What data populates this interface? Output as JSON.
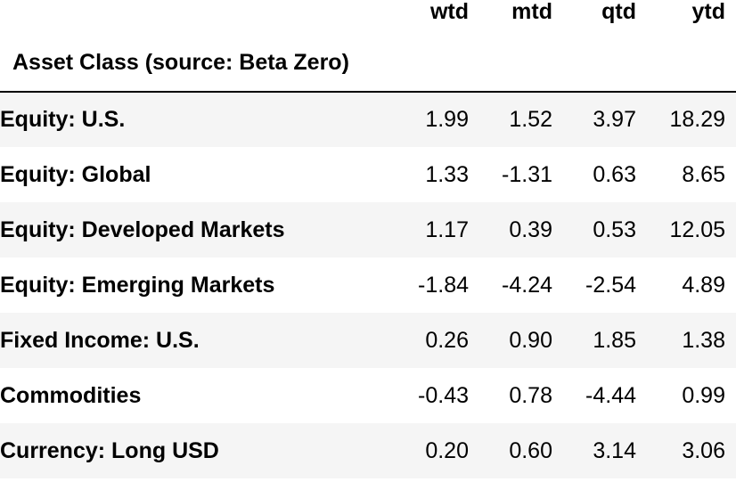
{
  "table": {
    "columns": [
      "wtd",
      "mtd",
      "qtd",
      "ytd"
    ],
    "index_label": "Asset Class (source: Beta Zero)",
    "rows": [
      {
        "label": "Equity: U.S.",
        "values": [
          "1.99",
          "1.52",
          "3.97",
          "18.29"
        ]
      },
      {
        "label": "Equity: Global",
        "values": [
          "1.33",
          "-1.31",
          "0.63",
          "8.65"
        ]
      },
      {
        "label": "Equity: Developed Markets",
        "values": [
          "1.17",
          "0.39",
          "0.53",
          "12.05"
        ]
      },
      {
        "label": "Equity: Emerging Markets",
        "values": [
          "-1.84",
          "-4.24",
          "-2.54",
          "4.89"
        ]
      },
      {
        "label": "Fixed Income: U.S.",
        "values": [
          "0.26",
          "0.90",
          "1.85",
          "1.38"
        ]
      },
      {
        "label": "Commodities",
        "values": [
          "-0.43",
          "0.78",
          "-4.44",
          "0.99"
        ]
      },
      {
        "label": "Currency: Long USD",
        "values": [
          "0.20",
          "0.60",
          "3.14",
          "3.06"
        ]
      }
    ]
  }
}
